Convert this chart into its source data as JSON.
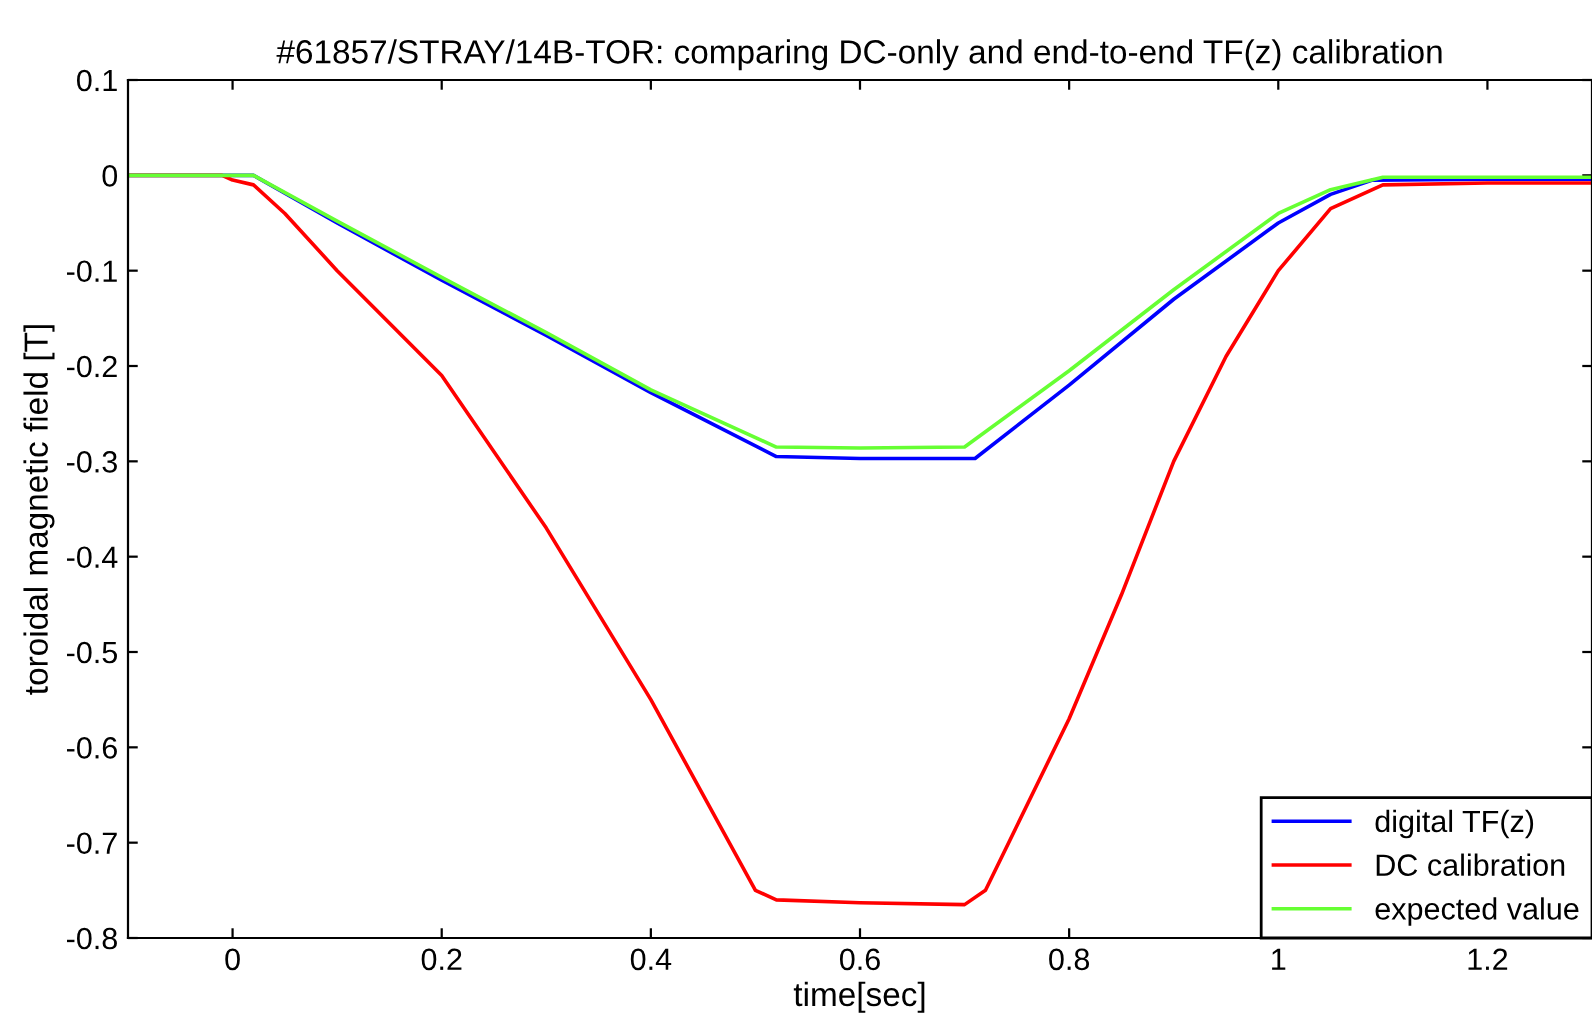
{
  "chart_data": {
    "type": "line",
    "title": "#61857/STRAY/14B-TOR: comparing DC-only and end-to-end TF(z) calibration",
    "xlabel": "time[sec]",
    "ylabel": "toroidal magnetic field [T]",
    "xlim": [
      -0.1,
      1.3
    ],
    "ylim": [
      -0.8,
      0.1
    ],
    "xticks": [
      0,
      0.2,
      0.4,
      0.6,
      0.8,
      1,
      1.2
    ],
    "yticks": [
      -0.8,
      -0.7,
      -0.6,
      -0.5,
      -0.4,
      -0.3,
      -0.2,
      -0.1,
      0,
      0.1
    ],
    "grid": false,
    "legend": "bottom right",
    "marker": "none",
    "line_style": "solid",
    "series": [
      {
        "name": "digital TF(z)",
        "color": "#0000ff",
        "x": [
          -0.1,
          0.0,
          0.02,
          0.1,
          0.2,
          0.3,
          0.4,
          0.52,
          0.6,
          0.71,
          0.8,
          0.9,
          1.0,
          1.05,
          1.09,
          1.2,
          1.3
        ],
        "values": [
          0,
          0,
          0,
          -0.05,
          -0.11,
          -0.168,
          -0.228,
          -0.295,
          -0.297,
          -0.297,
          -0.22,
          -0.13,
          -0.05,
          -0.02,
          -0.005,
          -0.004,
          -0.004
        ]
      },
      {
        "name": "DC calibration",
        "color": "#ff0000",
        "x": [
          -0.1,
          -0.01,
          0.0,
          0.02,
          0.05,
          0.1,
          0.2,
          0.3,
          0.4,
          0.5,
          0.52,
          0.6,
          0.7,
          0.72,
          0.8,
          0.85,
          0.9,
          0.95,
          1.0,
          1.05,
          1.1,
          1.2,
          1.3
        ],
        "values": [
          0,
          0,
          -0.005,
          -0.01,
          -0.04,
          -0.1,
          -0.21,
          -0.37,
          -0.55,
          -0.75,
          -0.76,
          -0.763,
          -0.765,
          -0.75,
          -0.57,
          -0.44,
          -0.3,
          -0.19,
          -0.1,
          -0.035,
          -0.01,
          -0.008,
          -0.008
        ]
      },
      {
        "name": "expected value",
        "color": "#66ff33",
        "x": [
          -0.1,
          0.0,
          0.02,
          0.1,
          0.2,
          0.3,
          0.4,
          0.52,
          0.6,
          0.7,
          0.8,
          0.9,
          1.0,
          1.05,
          1.1,
          1.2,
          1.3
        ],
        "values": [
          0,
          0,
          0,
          -0.048,
          -0.107,
          -0.165,
          -0.225,
          -0.285,
          -0.286,
          -0.285,
          -0.205,
          -0.12,
          -0.04,
          -0.015,
          -0.002,
          -0.002,
          -0.002
        ]
      }
    ]
  }
}
